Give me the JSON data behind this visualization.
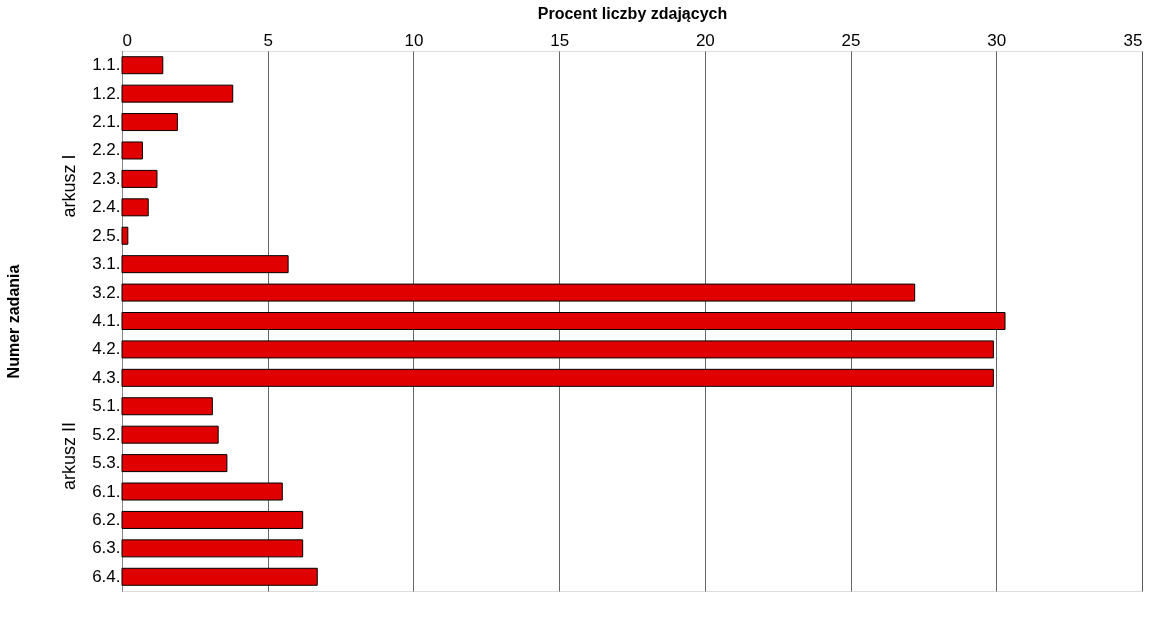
{
  "chart_data": {
    "type": "bar",
    "orientation": "horizontal",
    "xlabel": "Procent liczby zdających",
    "ylabel": "Numer zadania",
    "categories": [
      "1.1.",
      "1.2.",
      "2.1.",
      "2.2.",
      "2.3.",
      "2.4.",
      "2.5.",
      "3.1.",
      "3.2.",
      "4.1.",
      "4.2.",
      "4.3.",
      "5.1.",
      "5.2.",
      "5.3.",
      "6.1.",
      "6.2.",
      "6.3.",
      "6.4."
    ],
    "values": [
      1.4,
      3.8,
      1.9,
      0.7,
      1.2,
      0.9,
      0.2,
      5.7,
      27.2,
      30.3,
      29.9,
      29.9,
      3.1,
      3.3,
      3.6,
      5.5,
      6.2,
      6.2,
      6.7
    ],
    "color": "#e00000",
    "xlim": [
      0,
      35
    ],
    "xticks": [
      0,
      5,
      10,
      15,
      20,
      25,
      30,
      35
    ],
    "grid": "x",
    "annotations": [
      "arkusz I",
      "arkusz II"
    ]
  }
}
